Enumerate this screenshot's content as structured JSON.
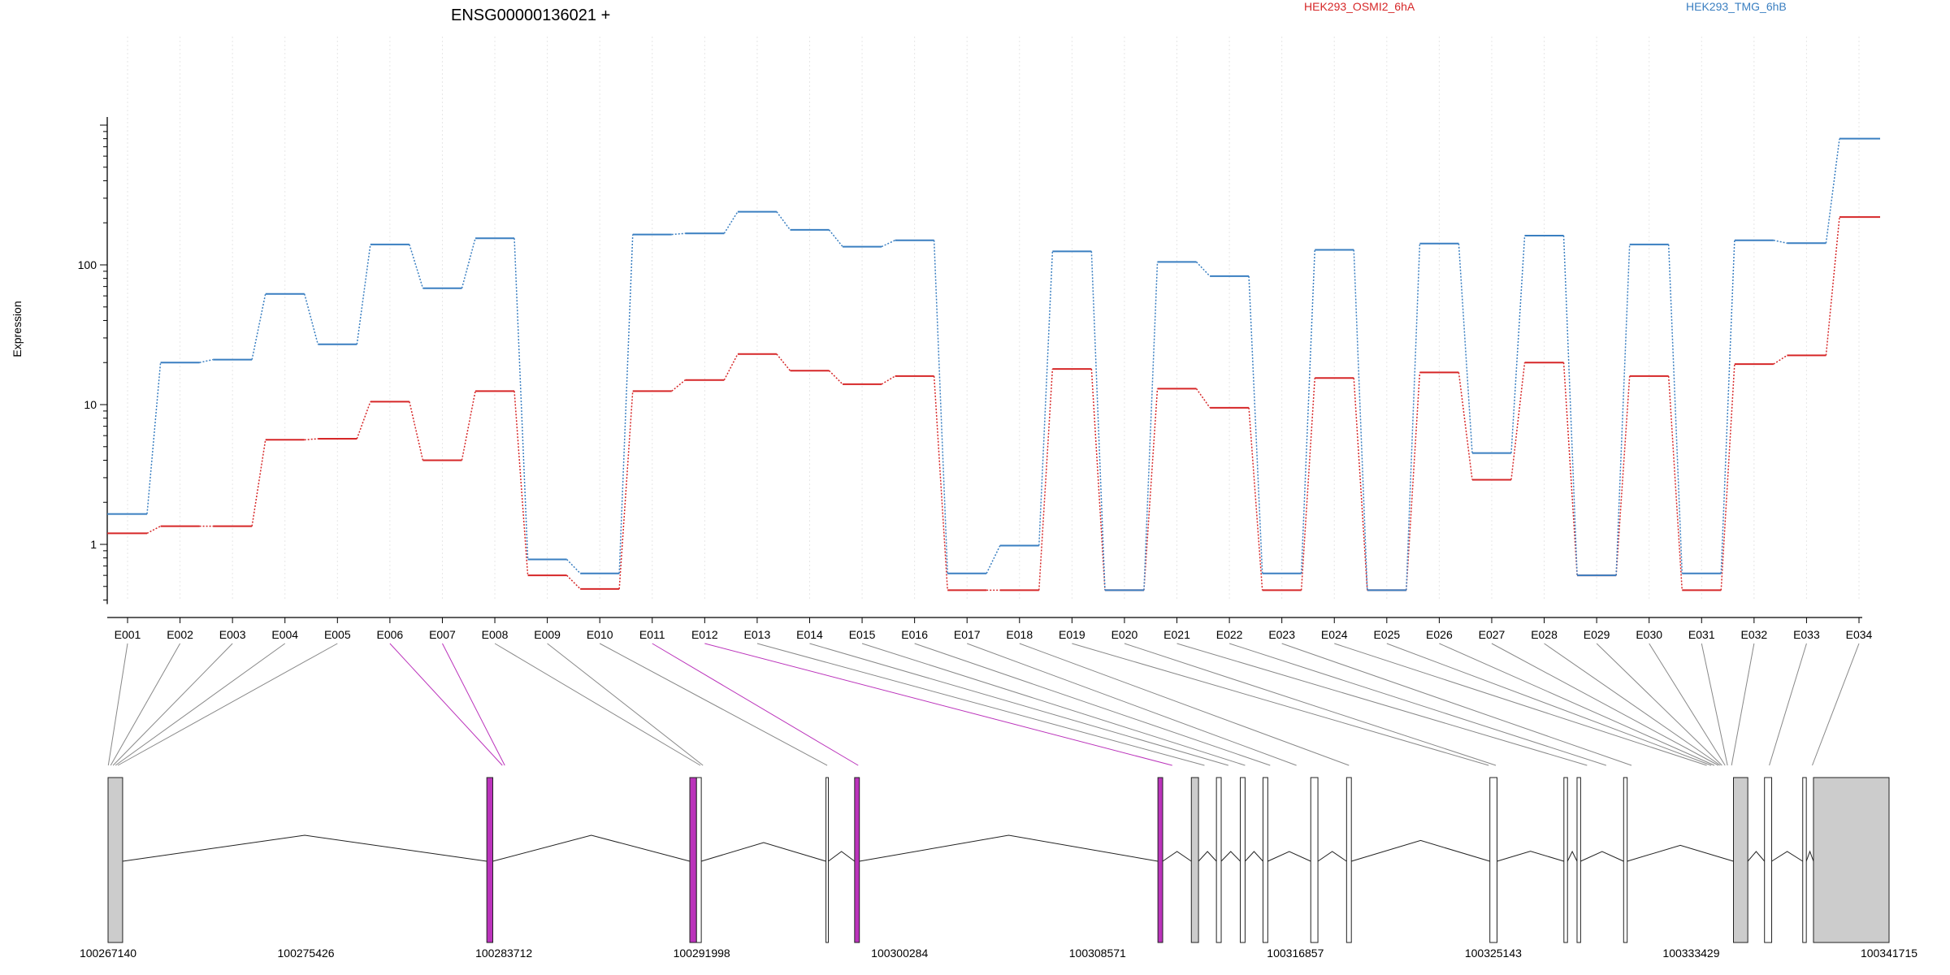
{
  "chart_data": {
    "type": "line",
    "title": "ENSG00000136021 +",
    "xlabel": "",
    "ylabel": "Expression",
    "y_scale": "log",
    "ylim": [
      0.4,
      1000
    ],
    "y_ticks": [
      "1",
      "10",
      "100"
    ],
    "grid": "vertical dotted lines at each exon",
    "legend_position": "top",
    "categories": [
      "E001",
      "E002",
      "E003",
      "E004",
      "E005",
      "E006",
      "E007",
      "E008",
      "E009",
      "E010",
      "E011",
      "E012",
      "E013",
      "E014",
      "E015",
      "E016",
      "E017",
      "E018",
      "E019",
      "E020",
      "E021",
      "E022",
      "E023",
      "E024",
      "E025",
      "E026",
      "E027",
      "E028",
      "E029",
      "E030",
      "E031",
      "E032",
      "E033",
      "E034"
    ],
    "series": [
      {
        "name": "HEK293_OSMI2_6hA",
        "color": "#d62728",
        "values": [
          1.2,
          1.35,
          1.35,
          5.6,
          5.7,
          10.5,
          4.0,
          12.5,
          0.6,
          0.48,
          12.5,
          15,
          23,
          17.5,
          14,
          16,
          0.47,
          0.47,
          18,
          0.47,
          13,
          9.5,
          0.47,
          15.5,
          0.47,
          17,
          2.9,
          20,
          0.6,
          16,
          0.47,
          19.5,
          22.5,
          220
        ]
      },
      {
        "name": "HEK293_TMG_6hB",
        "color": "#3a7fc1",
        "values": [
          1.65,
          20,
          21,
          62,
          27,
          140,
          68,
          155,
          0.78,
          0.62,
          165,
          168,
          240,
          178,
          135,
          150,
          0.62,
          0.98,
          125,
          0.47,
          105,
          83,
          0.62,
          128,
          0.47,
          142,
          4.5,
          162,
          0.6,
          140,
          0.62,
          150,
          143,
          800
        ]
      }
    ],
    "genomic_axis": {
      "tick_labels": [
        "100267140",
        "100275426",
        "100283712",
        "100291998",
        "100300284",
        "100308571",
        "100316857",
        "100325143",
        "100333429",
        "100341715"
      ],
      "tick_values": [
        100267140,
        100275426,
        100283712,
        100291998,
        100300284,
        100308571,
        100316857,
        100325143,
        100333429,
        100341715
      ],
      "range": [
        100267140,
        100341715
      ]
    },
    "exon_positions": [
      100267150,
      100267250,
      100267350,
      100267450,
      100267550,
      100283650,
      100283750,
      100291940,
      100292050,
      100297250,
      100298550,
      100311700,
      100313050,
      100314050,
      100314750,
      100315800,
      100316900,
      100319100,
      100324950,
      100325250,
      100329070,
      100329870,
      100330930,
      100334080,
      100334270,
      100334400,
      100334570,
      100334650,
      100334720,
      100334850,
      100334950,
      100335120,
      100336700,
      100338500
    ],
    "highlighted_exons": [
      "E006",
      "E007",
      "E011",
      "E012"
    ],
    "highlight_color": "#bb33bb",
    "exon_blocks": [
      {
        "start": 100267140,
        "end": 100267750,
        "fill": "#cccccc"
      },
      {
        "start": 100283000,
        "end": 100283250,
        "fill": "#bb33bb"
      },
      {
        "start": 100291500,
        "end": 100291780,
        "fill": "#bb33bb"
      },
      {
        "start": 100291780,
        "end": 100291980,
        "fill": "#ffffff"
      },
      {
        "start": 100297200,
        "end": 100297300,
        "fill": "#ffffff"
      },
      {
        "start": 100298400,
        "end": 100298600,
        "fill": "#bb33bb"
      },
      {
        "start": 100311100,
        "end": 100311300,
        "fill": "#bb33bb"
      },
      {
        "start": 100312500,
        "end": 100312800,
        "fill": "#cccccc"
      },
      {
        "start": 100313550,
        "end": 100313750,
        "fill": "#ffffff"
      },
      {
        "start": 100314550,
        "end": 100314750,
        "fill": "#ffffff"
      },
      {
        "start": 100315500,
        "end": 100315700,
        "fill": "#ffffff"
      },
      {
        "start": 100317500,
        "end": 100317800,
        "fill": "#ffffff"
      },
      {
        "start": 100319000,
        "end": 100319200,
        "fill": "#ffffff"
      },
      {
        "start": 100325000,
        "end": 100325300,
        "fill": "#ffffff"
      },
      {
        "start": 100328100,
        "end": 100328250,
        "fill": "#ffffff"
      },
      {
        "start": 100328650,
        "end": 100328800,
        "fill": "#ffffff"
      },
      {
        "start": 100330600,
        "end": 100330750,
        "fill": "#ffffff"
      },
      {
        "start": 100335200,
        "end": 100335800,
        "fill": "#cccccc"
      },
      {
        "start": 100336500,
        "end": 100336800,
        "fill": "#ffffff"
      },
      {
        "start": 100338100,
        "end": 100338250,
        "fill": "#ffffff"
      },
      {
        "start": 100338550,
        "end": 100341715,
        "fill": "#cccccc"
      }
    ]
  }
}
